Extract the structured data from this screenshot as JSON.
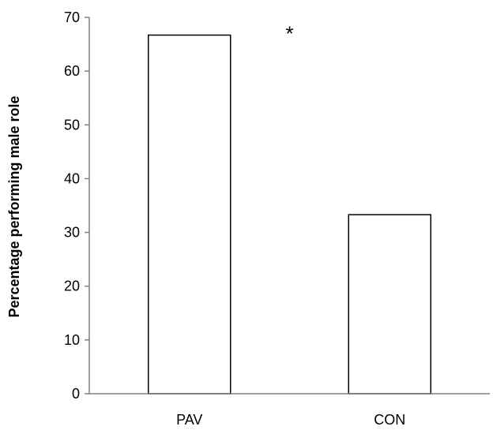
{
  "chart_data": {
    "type": "bar",
    "categories": [
      "PAV",
      "CON"
    ],
    "values": [
      66.7,
      33.3
    ],
    "title": "",
    "xlabel": "",
    "ylabel": "Percentage performing male role",
    "ylim": [
      0,
      70
    ],
    "yticks": [
      0,
      10,
      20,
      30,
      40,
      50,
      60,
      70
    ],
    "grid": false,
    "legend": "none",
    "bar_fill": "#ffffff",
    "bar_stroke": "#000000",
    "axis_color": "#808080",
    "annotations": [
      {
        "text": "*",
        "x_between": [
          "PAV",
          "CON"
        ],
        "y": 68
      }
    ]
  }
}
